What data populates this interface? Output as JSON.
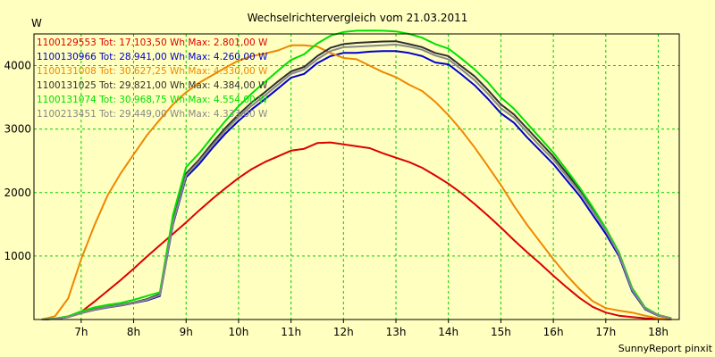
{
  "chart_data": {
    "type": "line",
    "title": "Wechselrichtervergleich vom 21.03.2011",
    "ylabel": "W",
    "xlabel": "",
    "footer": "SunnyReport pinxit",
    "xlim": [
      6.1,
      18.4
    ],
    "ylim": [
      0,
      4500
    ],
    "grid": true,
    "legend_position": "top-left",
    "plot_background": "#ffffc0",
    "grid_color": "#00cc00",
    "x_ticks": [
      7,
      8,
      9,
      10,
      11,
      12,
      13,
      14,
      15,
      16,
      17,
      18
    ],
    "x_tick_labels": [
      "7h",
      "8h",
      "9h",
      "10h",
      "11h",
      "12h",
      "13h",
      "14h",
      "15h",
      "16h",
      "17h",
      "18h"
    ],
    "y_ticks": [
      1000,
      2000,
      3000,
      4000
    ],
    "y_tick_labels": [
      "1000",
      "2000",
      "3000",
      "4000"
    ],
    "series": [
      {
        "name": "1100129553",
        "label": "1100129553 Tot: 17.103,50 Wh Max: 2.801,00 W",
        "color": "#dd0000",
        "x": [
          6.25,
          6.5,
          6.75,
          7.0,
          7.25,
          7.5,
          7.75,
          8.0,
          8.25,
          8.5,
          8.75,
          9.0,
          9.25,
          9.5,
          9.75,
          10.0,
          10.25,
          10.5,
          10.75,
          11.0,
          11.25,
          11.5,
          11.75,
          12.0,
          12.25,
          12.5,
          12.75,
          13.0,
          13.25,
          13.5,
          13.75,
          14.0,
          14.25,
          14.5,
          14.75,
          15.0,
          15.25,
          15.5,
          15.75,
          16.0,
          16.25,
          16.5,
          16.75,
          17.0,
          17.25,
          17.5,
          17.75,
          18.0,
          18.25
        ],
        "y": [
          0,
          10,
          40,
          120,
          280,
          450,
          620,
          800,
          990,
          1170,
          1350,
          1530,
          1720,
          1900,
          2070,
          2230,
          2370,
          2480,
          2570,
          2660,
          2690,
          2780,
          2790,
          2760,
          2730,
          2700,
          2620,
          2550,
          2480,
          2390,
          2270,
          2140,
          1990,
          1820,
          1640,
          1450,
          1250,
          1060,
          880,
          690,
          510,
          340,
          200,
          110,
          60,
          40,
          20,
          8,
          0
        ]
      },
      {
        "name": "1100130966",
        "label": "1100130966 Tot: 28.941,00 Wh Max: 4.260,00 W",
        "color": "#0000cc",
        "x": [
          6.25,
          6.5,
          6.75,
          7.0,
          7.25,
          7.5,
          7.75,
          8.0,
          8.25,
          8.5,
          8.75,
          9.0,
          9.25,
          9.5,
          9.75,
          10.0,
          10.25,
          10.5,
          10.75,
          11.0,
          11.25,
          11.5,
          11.75,
          12.0,
          12.25,
          12.5,
          12.75,
          13.0,
          13.25,
          13.5,
          13.75,
          14.0,
          14.25,
          14.5,
          14.75,
          15.0,
          15.25,
          15.5,
          15.75,
          16.0,
          16.25,
          16.5,
          16.75,
          17.0,
          17.25,
          17.5,
          17.75,
          18.0,
          18.25
        ],
        "y": [
          0,
          10,
          40,
          100,
          150,
          190,
          220,
          260,
          300,
          370,
          1500,
          2240,
          2450,
          2700,
          2930,
          3130,
          3310,
          3470,
          3640,
          3810,
          3870,
          4040,
          4150,
          4200,
          4200,
          4220,
          4230,
          4230,
          4200,
          4150,
          4050,
          4020,
          3860,
          3690,
          3480,
          3250,
          3100,
          2870,
          2660,
          2450,
          2200,
          1950,
          1650,
          1350,
          1000,
          450,
          160,
          60,
          20
        ]
      },
      {
        "name": "1100131008",
        "label": "1100131008 Tot: 30.627,25 Wh Max: 4.330,00 W",
        "color": "#ee8800",
        "x": [
          6.25,
          6.5,
          6.75,
          7.0,
          7.25,
          7.5,
          7.75,
          8.0,
          8.25,
          8.5,
          8.75,
          9.0,
          9.25,
          9.5,
          9.75,
          10.0,
          10.25,
          10.5,
          10.75,
          11.0,
          11.25,
          11.5,
          11.75,
          12.0,
          12.25,
          12.5,
          12.75,
          13.0,
          13.25,
          13.5,
          13.75,
          14.0,
          14.25,
          14.5,
          14.75,
          15.0,
          15.25,
          15.5,
          15.75,
          16.0,
          16.25,
          16.5,
          16.75,
          17.0,
          17.25,
          17.5,
          17.75,
          18.0,
          18.25
        ],
        "y": [
          0,
          50,
          330,
          950,
          1480,
          1950,
          2300,
          2600,
          2900,
          3150,
          3390,
          3580,
          3730,
          3850,
          3970,
          4080,
          4150,
          4190,
          4240,
          4320,
          4320,
          4300,
          4200,
          4120,
          4100,
          4000,
          3900,
          3820,
          3700,
          3600,
          3430,
          3220,
          2980,
          2710,
          2420,
          2120,
          1790,
          1490,
          1220,
          950,
          700,
          480,
          290,
          180,
          140,
          110,
          60,
          20,
          0
        ]
      },
      {
        "name": "1100131025",
        "label": "1100131025 Tot: 29.821,00 Wh Max: 4.384,00 W",
        "color": "#303030",
        "x": [
          6.25,
          6.5,
          6.75,
          7.0,
          7.25,
          7.5,
          7.75,
          8.0,
          8.25,
          8.5,
          8.75,
          9.0,
          9.25,
          9.5,
          9.75,
          10.0,
          10.25,
          10.5,
          10.75,
          11.0,
          11.25,
          11.5,
          11.75,
          12.0,
          12.25,
          12.5,
          12.75,
          13.0,
          13.25,
          13.5,
          13.75,
          14.0,
          14.25,
          14.5,
          14.75,
          15.0,
          15.25,
          15.5,
          15.75,
          16.0,
          16.25,
          16.5,
          16.75,
          17.0,
          17.25,
          17.5,
          17.75,
          18.0,
          18.25
        ],
        "y": [
          0,
          10,
          40,
          100,
          160,
          200,
          230,
          270,
          320,
          400,
          1550,
          2300,
          2520,
          2780,
          3020,
          3230,
          3420,
          3580,
          3750,
          3910,
          3980,
          4150,
          4280,
          4340,
          4360,
          4370,
          4380,
          4384,
          4340,
          4290,
          4200,
          4150,
          3990,
          3830,
          3620,
          3390,
          3230,
          3010,
          2790,
          2570,
          2310,
          2050,
          1740,
          1420,
          1050,
          480,
          180,
          70,
          20
        ]
      },
      {
        "name": "1100131074",
        "label": "1100131074 Tot: 30.968,75 Wh Max: 4.554,00 W",
        "color": "#00e000",
        "x": [
          6.25,
          6.5,
          6.75,
          7.0,
          7.25,
          7.5,
          7.75,
          8.0,
          8.25,
          8.5,
          8.75,
          9.0,
          9.25,
          9.5,
          9.75,
          10.0,
          10.25,
          10.5,
          10.75,
          11.0,
          11.25,
          11.5,
          11.75,
          12.0,
          12.25,
          12.5,
          12.75,
          13.0,
          13.25,
          13.5,
          13.75,
          14.0,
          14.25,
          14.5,
          14.75,
          15.0,
          15.25,
          15.5,
          15.75,
          16.0,
          16.25,
          16.5,
          16.75,
          17.0,
          17.25,
          17.5,
          17.75,
          18.0,
          18.25
        ],
        "y": [
          0,
          15,
          50,
          130,
          190,
          230,
          260,
          310,
          370,
          430,
          1650,
          2400,
          2620,
          2880,
          3130,
          3360,
          3560,
          3740,
          3920,
          4090,
          4180,
          4350,
          4470,
          4530,
          4550,
          4554,
          4550,
          4540,
          4500,
          4440,
          4340,
          4270,
          4110,
          3940,
          3740,
          3500,
          3320,
          3090,
          2860,
          2630,
          2360,
          2080,
          1770,
          1440,
          1060,
          500,
          190,
          70,
          20
        ]
      },
      {
        "name": "1100213451",
        "label": "1100213451 Tot: 29.449,00 Wh Max: 4.333,00 W",
        "color": "#888888",
        "x": [
          6.25,
          6.5,
          6.75,
          7.0,
          7.25,
          7.5,
          7.75,
          8.0,
          8.25,
          8.5,
          8.75,
          9.0,
          9.25,
          9.5,
          9.75,
          10.0,
          10.25,
          10.5,
          10.75,
          11.0,
          11.25,
          11.5,
          11.75,
          12.0,
          12.25,
          12.5,
          12.75,
          13.0,
          13.25,
          13.5,
          13.75,
          14.0,
          14.25,
          14.5,
          14.75,
          15.0,
          15.25,
          15.5,
          15.75,
          16.0,
          16.25,
          16.5,
          16.75,
          17.0,
          17.25,
          17.5,
          17.75,
          18.0,
          18.25
        ],
        "y": [
          0,
          10,
          40,
          100,
          155,
          195,
          225,
          265,
          310,
          385,
          1520,
          2270,
          2490,
          2740,
          2980,
          3190,
          3370,
          3530,
          3700,
          3870,
          3940,
          4100,
          4230,
          4290,
          4300,
          4310,
          4320,
          4333,
          4300,
          4250,
          4160,
          4100,
          3940,
          3770,
          3560,
          3330,
          3180,
          2950,
          2730,
          2520,
          2260,
          2010,
          1710,
          1400,
          1030,
          470,
          170,
          65,
          20
        ]
      }
    ]
  }
}
